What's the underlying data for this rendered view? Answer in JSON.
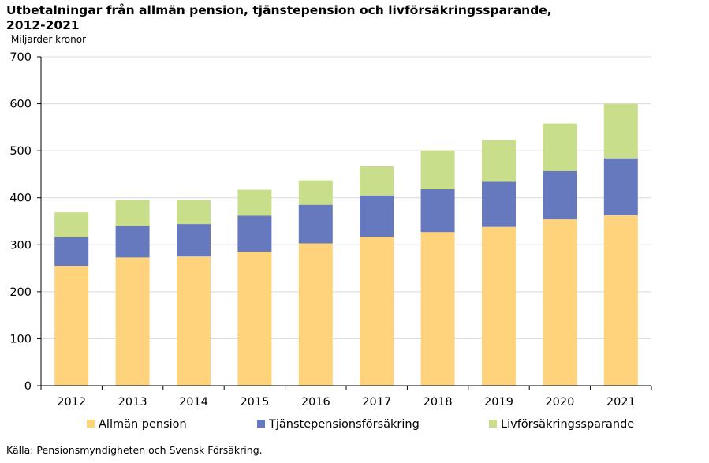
{
  "chart_data": {
    "type": "bar",
    "stacked": true,
    "title": "Utbetalningar från allmän pension, tjänstepension och livförsäkringssparande, 2012-2021",
    "subtitle": "Miljarder kronor",
    "categories": [
      "2012",
      "2013",
      "2014",
      "2015",
      "2016",
      "2017",
      "2018",
      "2019",
      "2020",
      "2021"
    ],
    "series": [
      {
        "name": "Allmän pension",
        "color": "#FFD37C",
        "values": [
          255,
          273,
          275,
          285,
          303,
          317,
          327,
          338,
          354,
          363
        ]
      },
      {
        "name": "Tjänstepensionsförsäkring",
        "color": "#6779BE",
        "values": [
          61,
          67,
          69,
          77,
          82,
          88,
          91,
          96,
          103,
          121
        ]
      },
      {
        "name": "Livförsäkringssparande",
        "color": "#C8DE8B",
        "values": [
          53,
          55,
          51,
          55,
          52,
          62,
          83,
          89,
          101,
          116
        ]
      }
    ],
    "ylim": [
      0,
      700
    ],
    "yticks": [
      "0",
      "100",
      "200",
      "300",
      "400",
      "500",
      "600",
      "700"
    ],
    "grid": true,
    "legend": "bottom",
    "source": "Källa: Pensionsmyndigheten och Svensk Försäkring."
  }
}
